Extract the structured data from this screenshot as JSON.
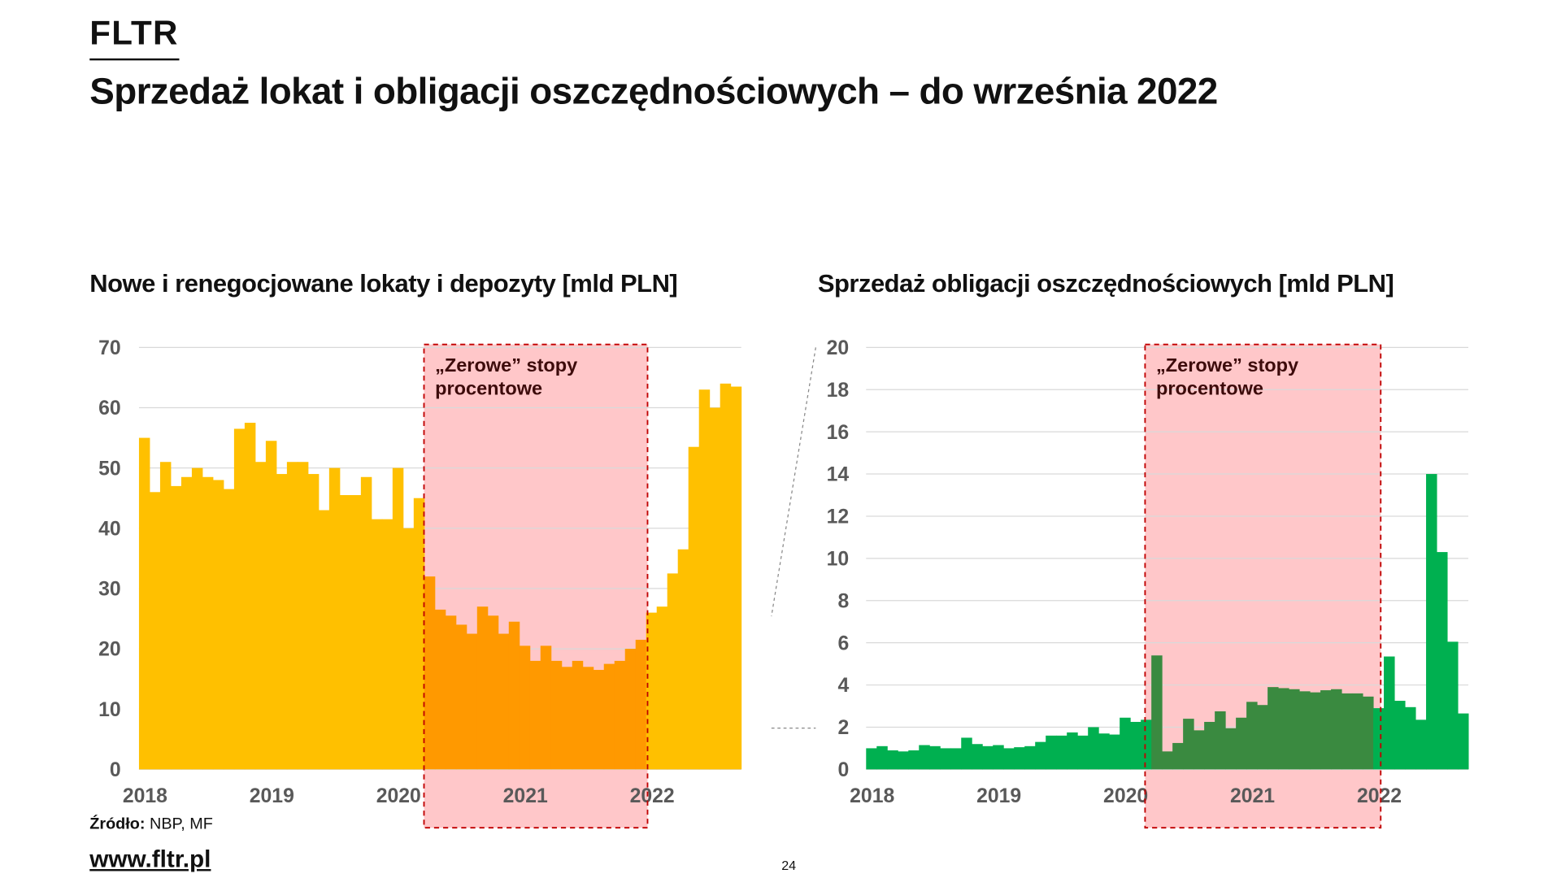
{
  "logo": "FLTR",
  "title": "Sprzedaż lokat i obligacji oszczędnościowych – do września 2022",
  "source_label": "Źródło:",
  "source_value": "NBP, MF",
  "website": "www.fltr.pl",
  "page_number": "24",
  "colors": {
    "deposits": "#FFC000",
    "deposits_highlight": "#FF9900",
    "bonds": "#00B050",
    "bonds_highlight": "#3A8A40",
    "zero_rate_band": "#FFC7C9",
    "band_border": "#C00000"
  },
  "chart_data": [
    {
      "type": "bar",
      "title": "Nowe i renegocjowane lokaty i depozyty [mld PLN]",
      "xlabel": "",
      "ylabel": "",
      "ylim": [
        0,
        70
      ],
      "yticks": [
        "0",
        "10",
        "20",
        "30",
        "40",
        "50",
        "60",
        "70"
      ],
      "xticks": [
        "2018",
        "2019",
        "2020",
        "2021",
        "2022"
      ],
      "grid": true,
      "period": "monthly, Jan 2018 – Sep 2022",
      "annotation": {
        "lines": [
          "„Zerowe” stopy",
          "procentowe"
        ],
        "from_index": 27,
        "to_index": 47
      },
      "values": [
        55,
        46,
        51,
        47,
        48.5,
        50,
        48.5,
        48,
        46.5,
        56.5,
        57.5,
        51,
        54.5,
        49,
        51,
        51,
        49,
        43,
        50,
        45.5,
        45.5,
        48.5,
        41.5,
        41.5,
        50,
        40,
        45,
        32,
        26.5,
        25.5,
        24,
        22.5,
        27,
        25.5,
        22.5,
        24.5,
        20.5,
        18,
        20.5,
        18,
        17,
        18,
        17,
        16.5,
        17.5,
        18,
        20,
        21.5,
        26,
        27,
        32.5,
        36.5,
        53.5,
        63,
        60,
        64,
        63.5
      ]
    },
    {
      "type": "bar",
      "title": "Sprzedaż obligacji oszczędnościowych [mld PLN]",
      "xlabel": "",
      "ylabel": "",
      "ylim": [
        0,
        20
      ],
      "yticks": [
        "0",
        "2",
        "4",
        "6",
        "8",
        "10",
        "12",
        "14",
        "16",
        "18",
        "20"
      ],
      "xticks": [
        "2018",
        "2019",
        "2020",
        "2021",
        "2022"
      ],
      "grid": true,
      "period": "monthly, Jan 2018 – Sep 2022",
      "annotation": {
        "lines": [
          "„Zerowe” stopy",
          "procentowe"
        ],
        "from_index": 27,
        "to_index": 47
      },
      "values": [
        1.0,
        1.1,
        0.9,
        0.85,
        0.9,
        1.15,
        1.1,
        1.0,
        1.0,
        1.5,
        1.2,
        1.1,
        1.15,
        1.0,
        1.05,
        1.1,
        1.3,
        1.6,
        1.6,
        1.75,
        1.6,
        2.0,
        1.7,
        1.65,
        2.45,
        2.25,
        2.35,
        5.4,
        0.85,
        1.25,
        2.4,
        1.85,
        2.25,
        2.75,
        1.95,
        2.45,
        3.2,
        3.05,
        3.9,
        3.85,
        3.8,
        3.7,
        3.65,
        3.75,
        3.8,
        3.6,
        3.6,
        3.45,
        2.9,
        5.35,
        3.25,
        2.95,
        2.35,
        14.0,
        10.3,
        6.05,
        2.65
      ]
    }
  ]
}
